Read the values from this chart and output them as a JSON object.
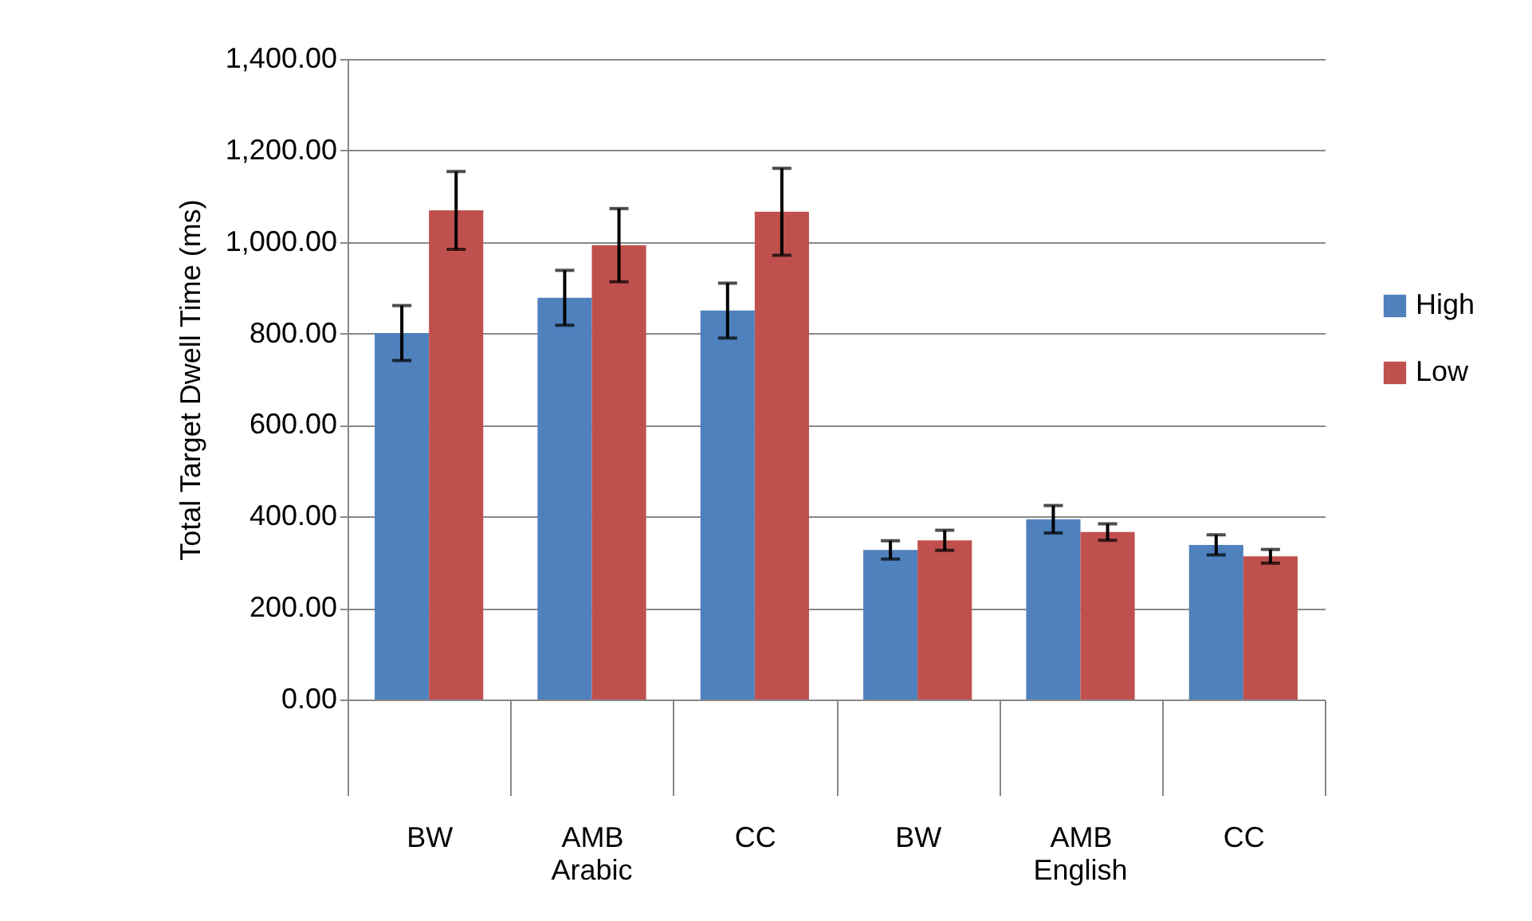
{
  "chart_data": {
    "type": "bar",
    "ylabel": "Total Target Dwell Time (ms)",
    "categories": [
      "BW",
      "AMB",
      "CC",
      "BW",
      "AMB",
      "CC"
    ],
    "series": [
      {
        "name": "High",
        "color": "#4f81bd",
        "values": [
          801,
          878,
          850,
          327,
          394,
          338
        ],
        "errors": [
          60,
          60,
          60,
          20,
          30,
          22
        ]
      },
      {
        "name": "Low",
        "color": "#c0504d",
        "values": [
          1069,
          993,
          1066,
          348,
          366,
          313
        ],
        "errors": [
          85,
          80,
          95,
          22,
          18,
          15
        ]
      }
    ],
    "annotations": [
      "Arabic",
      "English"
    ],
    "ylim": [
      0,
      1400
    ],
    "yticks": [
      {
        "value": 0,
        "label": "0.00"
      },
      {
        "value": 200,
        "label": "200.00"
      },
      {
        "value": 400,
        "label": "400.00"
      },
      {
        "value": 600,
        "label": "600.00"
      },
      {
        "value": 800,
        "label": "800.00"
      },
      {
        "value": 1000,
        "label": "1,000.00"
      },
      {
        "value": 1200,
        "label": "1,200.00"
      },
      {
        "value": 1400,
        "label": "1,400.00"
      }
    ],
    "grid": "y",
    "legend": "right"
  }
}
